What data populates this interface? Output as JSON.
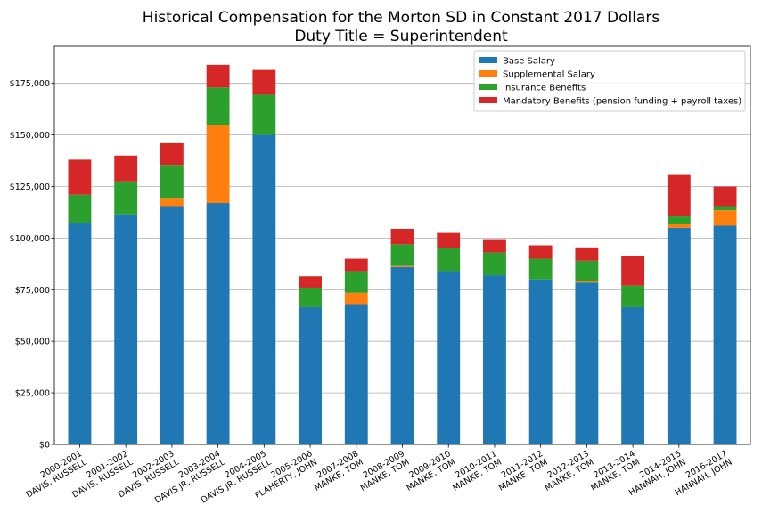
{
  "chart_data": {
    "type": "bar",
    "stacked": true,
    "title": "Historical Compensation for the Morton SD in Constant 2017 Dollars",
    "subtitle": "Duty Title = Superintendent",
    "xlabel": "",
    "ylabel": "",
    "ylim": [
      0,
      193000
    ],
    "yticks": [
      0,
      25000,
      50000,
      75000,
      100000,
      125000,
      150000,
      175000
    ],
    "ytick_labels": [
      "$0",
      "$25,000",
      "$50,000",
      "$75,000",
      "$100,000",
      "$125,000",
      "$150,000",
      "$175,000"
    ],
    "grid": "y",
    "legend_position": "top-right",
    "categories": [
      [
        "2000-2001",
        "DAVIS, RUSSELL"
      ],
      [
        "2001-2002",
        "DAVIS, RUSSELL"
      ],
      [
        "2002-2003",
        "DAVIS, RUSSELL"
      ],
      [
        "2003-2004",
        "DAVIS JR, RUSSELL"
      ],
      [
        "2004-2005",
        "DAVIS JR, RUSSELL"
      ],
      [
        "2005-2006",
        "FLAHERTY, JOHN"
      ],
      [
        "2007-2008",
        "MANKE, TOM"
      ],
      [
        "2008-2009",
        "MANKE, TOM"
      ],
      [
        "2009-2010",
        "MANKE, TOM"
      ],
      [
        "2010-2011",
        "MANKE, TOM"
      ],
      [
        "2011-2012",
        "MANKE, TOM"
      ],
      [
        "2012-2013",
        "MANKE, TOM"
      ],
      [
        "2013-2014",
        "MANKE, TOM"
      ],
      [
        "2014-2015",
        "HANNAH, JOHN"
      ],
      [
        "2016-2017",
        "HANNAH, JOHN"
      ]
    ],
    "series": [
      {
        "name": "Base Salary",
        "color": "#1f77b4",
        "values": [
          107500,
          111500,
          115500,
          117000,
          150000,
          66500,
          68000,
          86000,
          84000,
          82000,
          80000,
          78500,
          66500,
          105000,
          106000
        ]
      },
      {
        "name": "Supplemental Salary",
        "color": "#ff7f0e",
        "values": [
          0,
          0,
          4000,
          38000,
          0,
          0,
          5500,
          500,
          0,
          0,
          0,
          700,
          0,
          2000,
          7500
        ]
      },
      {
        "name": "Insurance Benefits",
        "color": "#2ca02c",
        "values": [
          13500,
          16000,
          16000,
          18000,
          19500,
          9500,
          10500,
          10500,
          11000,
          11000,
          10000,
          9800,
          10500,
          3500,
          2000
        ]
      },
      {
        "name": "Mandatory Benefits (pension funding + payroll taxes)",
        "color": "#d62728",
        "values": [
          17000,
          12500,
          10500,
          11000,
          12000,
          5500,
          6000,
          7500,
          7500,
          6500,
          6500,
          6500,
          14500,
          20500,
          9500
        ]
      }
    ]
  }
}
